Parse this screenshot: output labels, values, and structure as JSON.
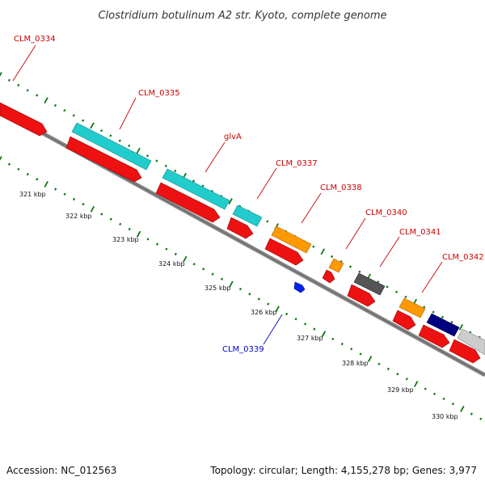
{
  "title": "Clostridium botulinum A2 str. Kyoto, complete genome",
  "footer": {
    "accession": "Accession: NC_012563",
    "summary": "Topology: circular; Length: 4,155,278 bp; Genes: 3,977"
  },
  "colors": {
    "backbone": "#888888",
    "cds": "#ee1111",
    "gene_cyan": "#22cccc",
    "gene_orange": "#ff9900",
    "gene_gray": "#555555",
    "gene_navy": "#000080",
    "gene_lightgray": "#cccccc",
    "tick_dots": "#117711",
    "label_red": "#cc0000",
    "label_blue": "#0000cc"
  },
  "scale_ticks": [
    "321 kbp",
    "322 kbp",
    "323 kbp",
    "324 kbp",
    "325 kbp",
    "326 kbp",
    "327 kbp",
    "328 kbp",
    "329 kbp",
    "330 kbp"
  ],
  "gene_labels": [
    {
      "name": "CLM_0334",
      "color": "red"
    },
    {
      "name": "CLM_0335",
      "color": "red"
    },
    {
      "name": "glvA",
      "color": "red"
    },
    {
      "name": "CLM_0337",
      "color": "red"
    },
    {
      "name": "CLM_0338",
      "color": "red"
    },
    {
      "name": "CLM_0340",
      "color": "red"
    },
    {
      "name": "CLM_0341",
      "color": "red"
    },
    {
      "name": "CLM_0342",
      "color": "red"
    },
    {
      "name": "CLM_0339",
      "color": "blue"
    }
  ]
}
